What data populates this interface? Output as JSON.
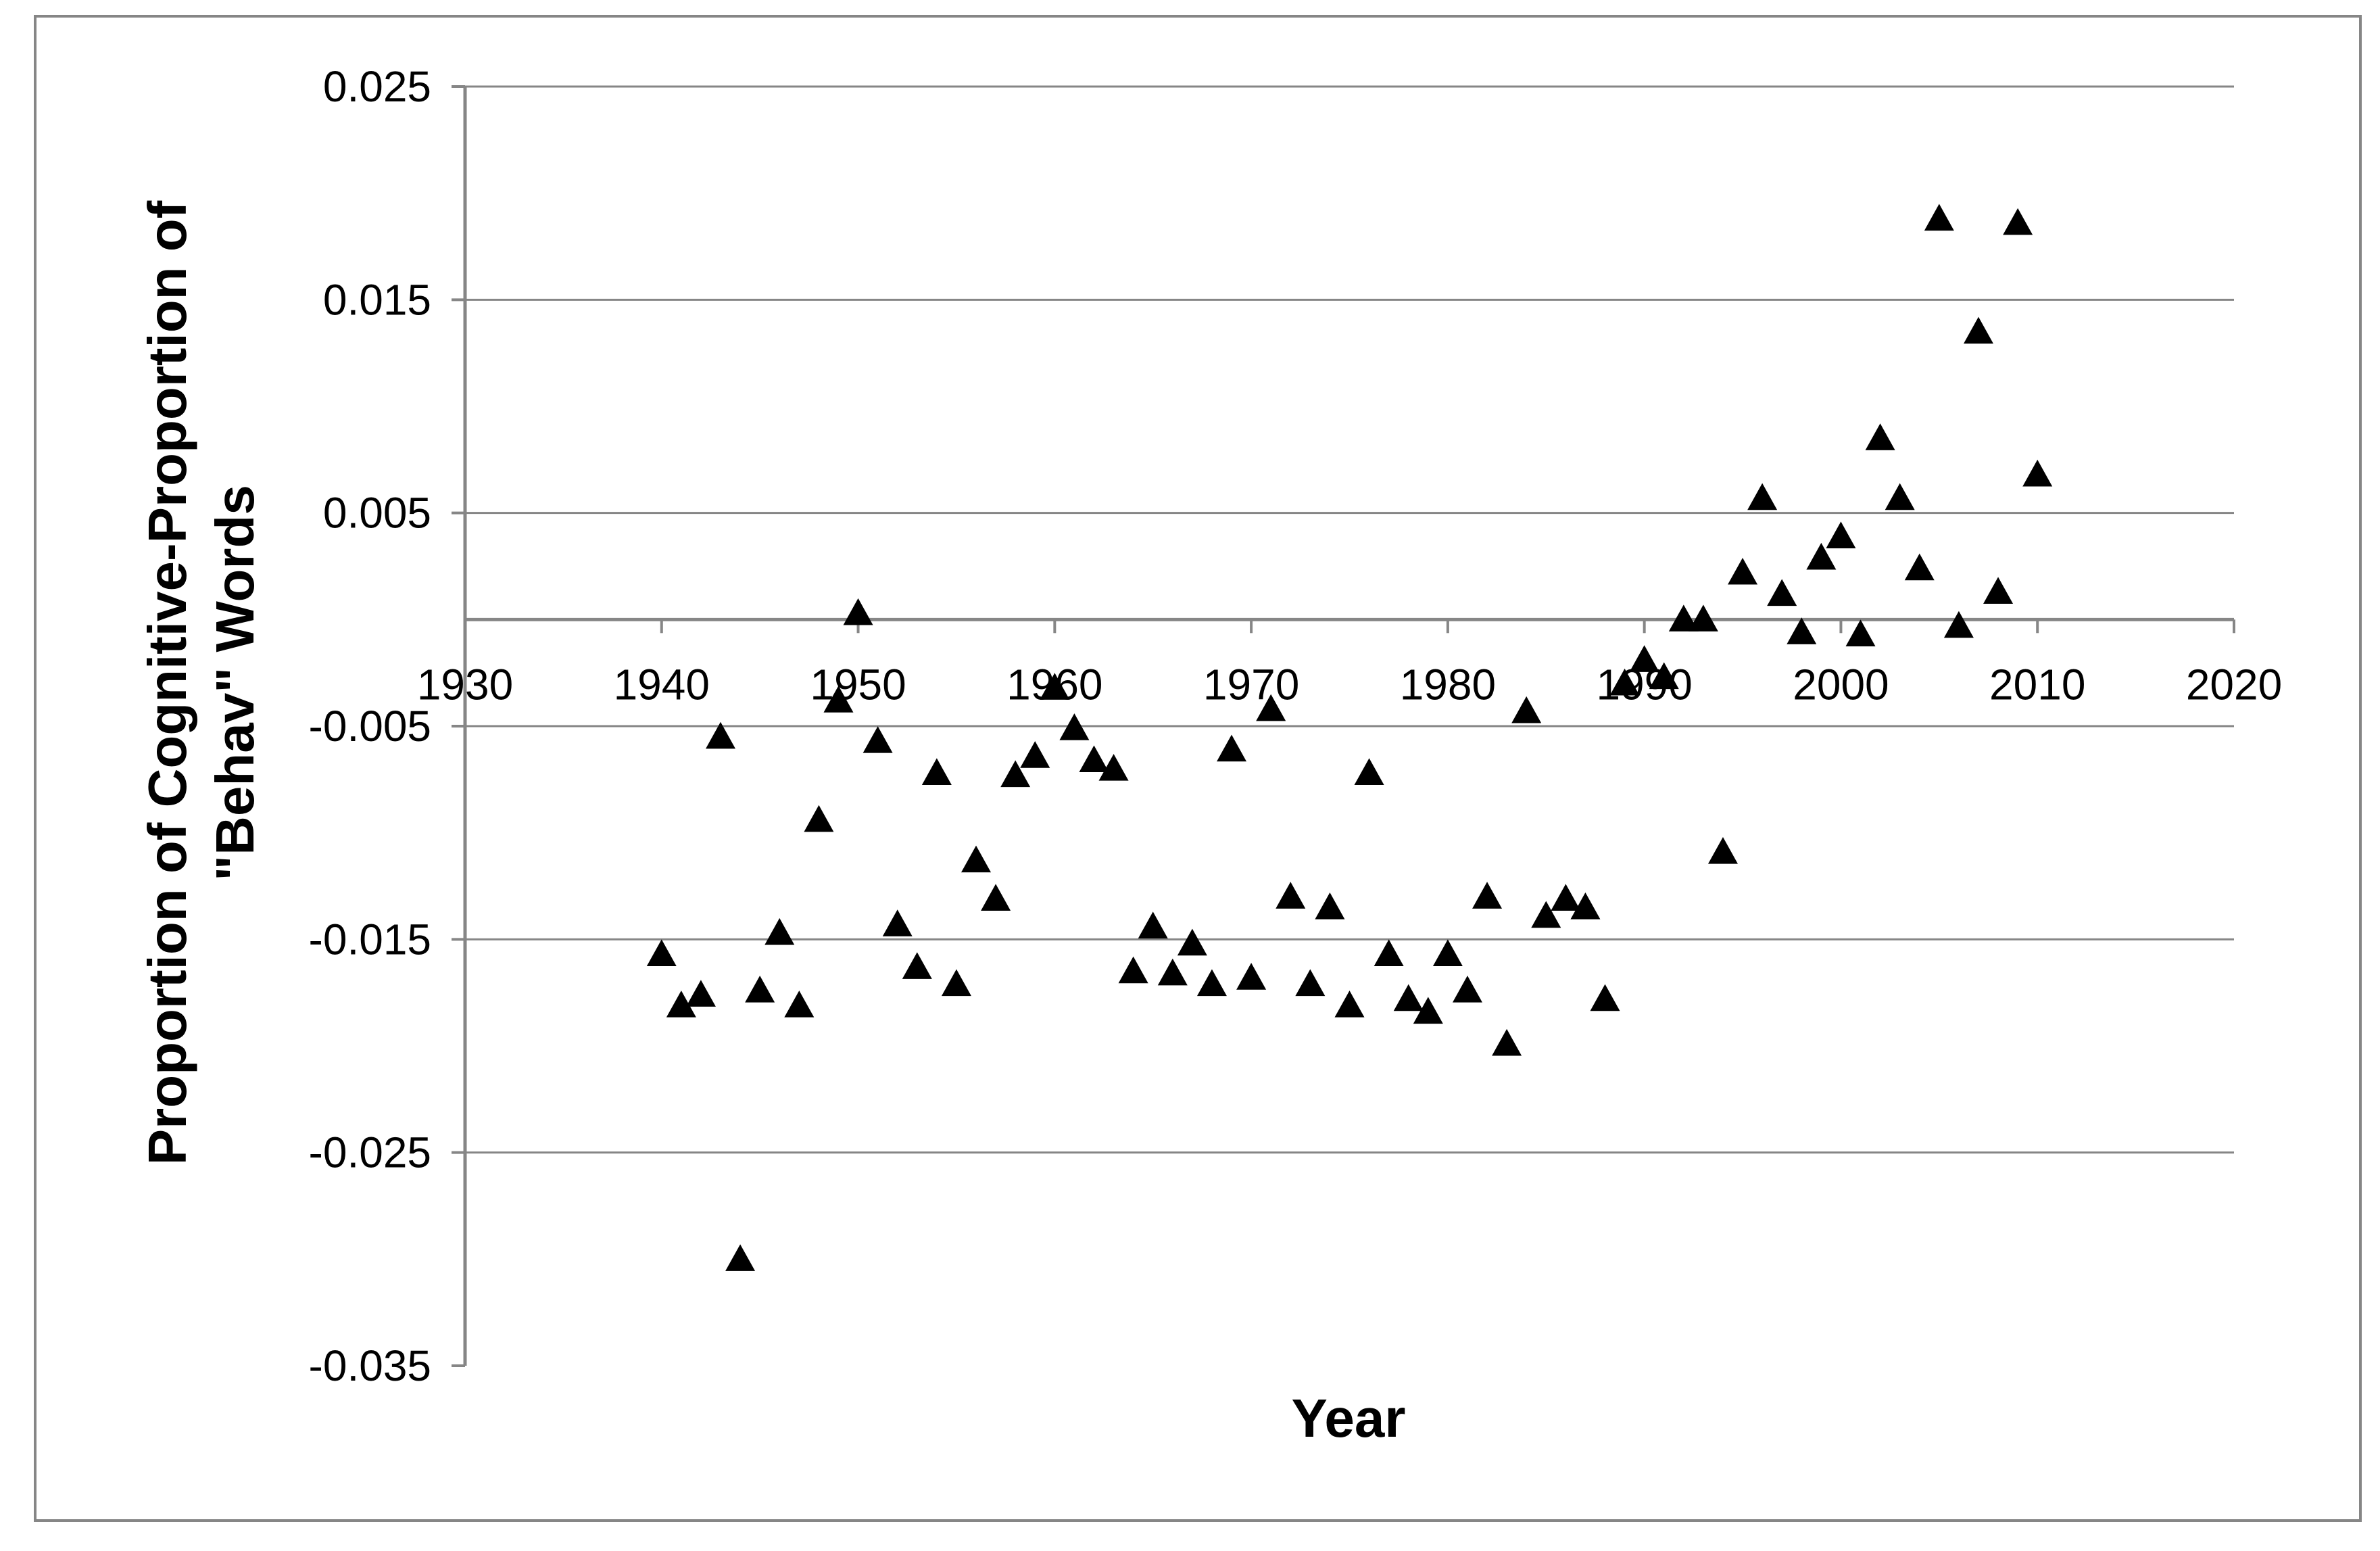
{
  "chart_data": {
    "type": "scatter",
    "title": "",
    "xlabel": "Year",
    "ylabel_lines": [
      "Proportion of Cognitive-Proportion of",
      "\"Behav\" Words"
    ],
    "xlim": [
      1930,
      2020
    ],
    "ylim": [
      -0.035,
      0.025
    ],
    "x_ticks": [
      "1930",
      "1940",
      "1950",
      "1960",
      "1970",
      "1980",
      "1990",
      "2000",
      "2010",
      "2020"
    ],
    "y_ticks": [
      "0.025",
      "0.015",
      "0.005",
      "-0.005",
      "-0.015",
      "-0.025",
      "-0.035"
    ],
    "grid": "horizontal",
    "legend": "none",
    "marker": "triangle",
    "marker_color": "#000000",
    "x": [
      1940,
      1941,
      1942,
      1943,
      1944,
      1945,
      1946,
      1947,
      1948,
      1949,
      1950,
      1951,
      1952,
      1953,
      1954,
      1955,
      1956,
      1957,
      1958,
      1959,
      1960,
      1961,
      1962,
      1963,
      1964,
      1965,
      1966,
      1967,
      1968,
      1969,
      1970,
      1971,
      1972,
      1973,
      1974,
      1975,
      1976,
      1977,
      1978,
      1979,
      1980,
      1981,
      1982,
      1983,
      1984,
      1985,
      1986,
      1987,
      1988,
      1989,
      1990,
      1991,
      1992,
      1993,
      1994,
      1995,
      1996,
      1997,
      1998,
      1999,
      2000,
      2001,
      2002,
      2003,
      2004,
      2005,
      2006,
      2007,
      2008,
      2009,
      2010
    ],
    "y": [
      -0.0157,
      -0.0181,
      -0.0176,
      -0.0055,
      -0.03,
      -0.0174,
      -0.0147,
      -0.0181,
      -0.0094,
      -0.0038,
      0.0003,
      -0.0057,
      -0.0143,
      -0.0163,
      -0.0072,
      -0.0171,
      -0.0113,
      -0.0131,
      -0.0073,
      -0.0064,
      -0.0032,
      -0.0051,
      -0.0066,
      -0.007,
      -0.0165,
      -0.0144,
      -0.0166,
      -0.0152,
      -0.0171,
      -0.0061,
      -0.0168,
      -0.0042,
      -0.013,
      -0.0171,
      -0.0135,
      -0.0181,
      -0.0072,
      -0.0157,
      -0.0178,
      -0.0184,
      -0.0157,
      -0.0174,
      -0.013,
      -0.0199,
      -0.0043,
      -0.0139,
      -0.0131,
      -0.0135,
      -0.0178,
      -0.003,
      -0.0019,
      -0.0027,
      0.0,
      0.0,
      -0.0109,
      0.0022,
      0.0057,
      0.0012,
      -0.0006,
      0.0029,
      0.0039,
      -0.0007,
      0.0085,
      0.0057,
      0.0024,
      0.0188,
      -0.0003,
      0.0135,
      0.0013,
      0.0186,
      0.0068
    ]
  }
}
